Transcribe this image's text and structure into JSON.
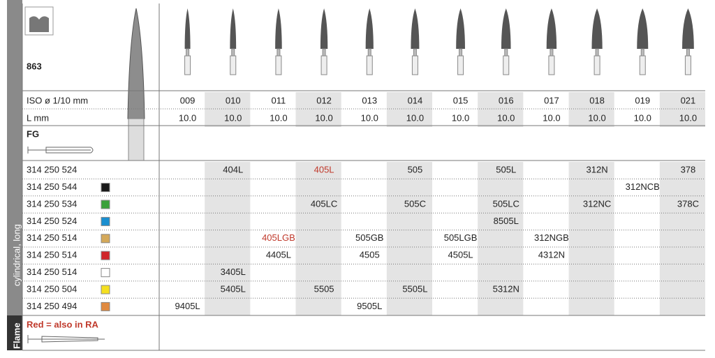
{
  "side_label": "cylindrical, long",
  "shape_label": "Flame",
  "figure_number": "863",
  "iso_label": "ISO ø 1/10 mm",
  "length_label": "L mm",
  "shank_label": "FG",
  "note": "Red = also in RA",
  "iso": [
    "009",
    "010",
    "011",
    "012",
    "013",
    "014",
    "015",
    "016",
    "017",
    "018",
    "019",
    "021"
  ],
  "length": [
    "10.0",
    "10.0",
    "10.0",
    "10.0",
    "10.0",
    "10.0",
    "10.0",
    "10.0",
    "10.0",
    "10.0",
    "10.0",
    "10.0"
  ],
  "rows": [
    {
      "code": "314 250 524",
      "cells": [
        {
          "col": 1,
          "text": "404L"
        },
        {
          "col": 3,
          "text": "405L",
          "red": true
        },
        {
          "col": 5,
          "text": "505"
        },
        {
          "col": 7,
          "text": "505L"
        },
        {
          "col": 9,
          "text": "312N"
        },
        {
          "col": 11,
          "text": "378"
        }
      ]
    },
    {
      "code": "314 250 544",
      "swatch": "#1a1a1a",
      "cells": [
        {
          "col": 10,
          "text": "312NCB"
        }
      ]
    },
    {
      "code": "314 250 534",
      "swatch": "#3aa13a",
      "cells": [
        {
          "col": 3,
          "text": "405LC"
        },
        {
          "col": 5,
          "text": "505C"
        },
        {
          "col": 7,
          "text": "505LC"
        },
        {
          "col": 9,
          "text": "312NC"
        },
        {
          "col": 11,
          "text": "378C"
        }
      ]
    },
    {
      "code": "314 250 524",
      "swatch": "#1a8fd0",
      "cells": [
        {
          "col": 7,
          "text": "8505L"
        }
      ]
    },
    {
      "code": "314 250 514",
      "swatch": "#d4a95a",
      "cells": [
        {
          "col": 2,
          "text": "405LGB",
          "red": true
        },
        {
          "col": 4,
          "text": "505GB"
        },
        {
          "col": 6,
          "text": "505LGB"
        },
        {
          "col": 8,
          "text": "312NGB"
        }
      ]
    },
    {
      "code": "314 250 514",
      "swatch": "#d0262a",
      "cells": [
        {
          "col": 2,
          "text": "4405L"
        },
        {
          "col": 4,
          "text": "4505"
        },
        {
          "col": 6,
          "text": "4505L"
        },
        {
          "col": 8,
          "text": "4312N"
        }
      ]
    },
    {
      "code": "314 250 514",
      "swatch": "#ffffff",
      "cells": [
        {
          "col": 1,
          "text": "3405L"
        }
      ]
    },
    {
      "code": "314 250 504",
      "swatch": "#f5e020",
      "cells": [
        {
          "col": 1,
          "text": "5405L"
        },
        {
          "col": 3,
          "text": "5505"
        },
        {
          "col": 5,
          "text": "5505L"
        },
        {
          "col": 7,
          "text": "5312N"
        }
      ]
    },
    {
      "code": "314 250 494",
      "swatch": "#e08a40",
      "cells": [
        {
          "col": 0,
          "text": "9405L"
        },
        {
          "col": 4,
          "text": "9505L"
        }
      ]
    }
  ]
}
